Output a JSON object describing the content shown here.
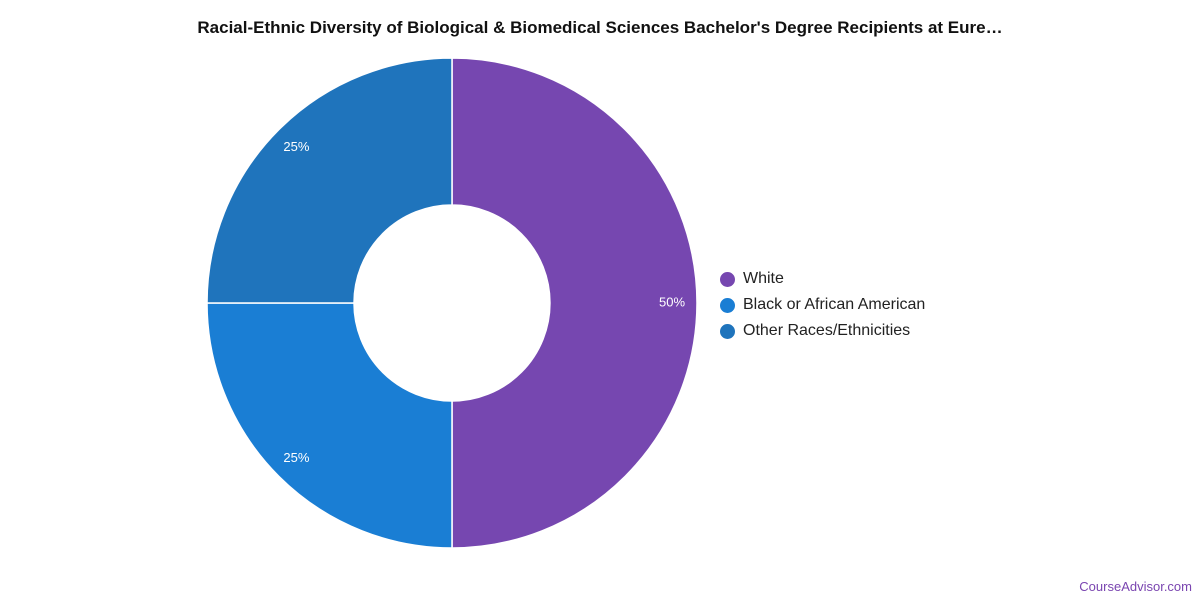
{
  "chart_data": {
    "type": "pie",
    "title": "Racial-Ethnic Diversity of Biological & Biomedical Sciences Bachelor's Degree Recipients at Eure…",
    "donut": true,
    "start_angle": 0,
    "legend_position": "right",
    "slices": [
      {
        "name": "White",
        "value": 50,
        "label": "50%",
        "color": "#7647b0"
      },
      {
        "name": "Black or African American",
        "value": 25,
        "label": "25%",
        "color": "#1a7ed4"
      },
      {
        "name": "Other Races/Ethnicities",
        "value": 25,
        "label": "25%",
        "color": "#1f74bc"
      }
    ]
  },
  "watermark": "CourseAdvisor.com"
}
